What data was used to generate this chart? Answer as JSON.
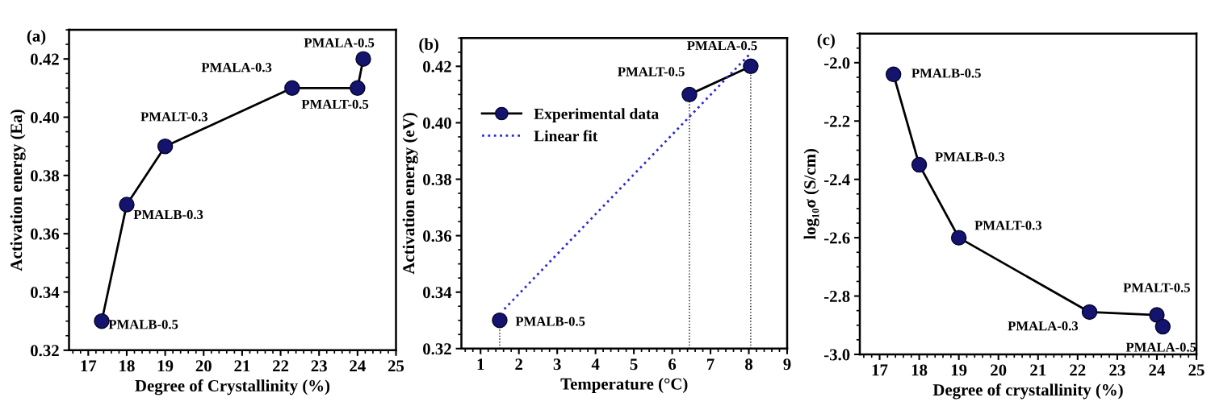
{
  "chart_data": [
    {
      "type": "line",
      "title": "(a)",
      "xlabel": "Degree of Crystallinity (%)",
      "ylabel": "Activation energy (Ea)",
      "xlim": [
        16.5,
        25
      ],
      "xticks": [
        17,
        18,
        19,
        20,
        21,
        22,
        23,
        24,
        25
      ],
      "ylim": [
        0.32,
        0.43
      ],
      "yticks": [
        0.32,
        0.34,
        0.36,
        0.38,
        {
          "value": 0.4,
          "label": "0.40"
        },
        0.42
      ],
      "marker": "circle",
      "grid": false,
      "legend": false,
      "series": [
        {
          "color": "#14146e",
          "x": [
            17.35,
            18,
            19,
            22.3,
            24,
            24.15
          ],
          "values": [
            0.33,
            0.37,
            0.39,
            0.41,
            0.41,
            0.42
          ]
        }
      ],
      "annotations": [
        {
          "text": "PMALB-0.5",
          "x": 17.35,
          "y": 0.33
        },
        {
          "text": "PMALB-0.3",
          "x": 18,
          "y": 0.37
        },
        {
          "text": "PMALT-0.3",
          "x": 19,
          "y": 0.39
        },
        {
          "text": "PMALA-0.3",
          "x": 22.3,
          "y": 0.41
        },
        {
          "text": "PMALT-0.5",
          "x": 24,
          "y": 0.41
        },
        {
          "text": "PMALA-0.5",
          "x": 24.15,
          "y": 0.42
        }
      ]
    },
    {
      "type": "line",
      "title": "(b)",
      "xlabel": "Temperature (°C)",
      "ylabel": "Activation energy (eV)",
      "xlim": [
        0.5,
        9
      ],
      "xticks": [
        1,
        2,
        3,
        4,
        5,
        6,
        7,
        8,
        9
      ],
      "ylim": [
        0.32,
        0.43
      ],
      "yticks": [
        0.32,
        0.34,
        0.36,
        0.38,
        {
          "value": 0.4,
          "label": "0.40"
        },
        0.42
      ],
      "grid": false,
      "legend": "top left",
      "series": [
        {
          "name": "Experimental data",
          "color": "#14146e",
          "marker": "circle",
          "line_style": "solid",
          "x": [
            1.5,
            4,
            6.45,
            8.05
          ],
          "values": [
            0.33,
            null,
            0.41,
            0.42
          ]
        },
        {
          "name": "Linear fit",
          "color": "#2b2bd8",
          "marker": "none",
          "line_style": "dotted",
          "x": [
            1.62,
            8.0
          ],
          "values": [
            0.334,
            0.424
          ]
        }
      ],
      "ref_lines": [
        {
          "axis": "x",
          "value": 1.5,
          "color": "#111111",
          "line_style": "dotted"
        },
        {
          "axis": "x",
          "value": 6.45,
          "color": "#111111",
          "line_style": "dotted"
        },
        {
          "axis": "x",
          "value": 8.05,
          "color": "#111111",
          "line_style": "dotted"
        }
      ],
      "annotations": [
        {
          "text": "PMALB-0.5",
          "x": 1.5,
          "y": 0.33
        },
        {
          "text": "PMALT-0.5",
          "x": 6.45,
          "y": 0.41
        },
        {
          "text": "PMALA-0.5",
          "x": 8.05,
          "y": 0.42
        }
      ]
    },
    {
      "type": "line",
      "title": "(c)",
      "xlabel": "Degree of crystallinity (%)",
      "ylabel": "log₁₀σ (S/cm)",
      "xlim": [
        16.5,
        25
      ],
      "xticks": [
        17,
        18,
        19,
        20,
        21,
        22,
        23,
        24,
        25
      ],
      "ylim": [
        -3.0,
        -1.9
      ],
      "yticks": [
        {
          "value": -3.0,
          "label": "-3.0"
        },
        {
          "value": -2.8,
          "label": "-2.8"
        },
        {
          "value": -2.6,
          "label": "-2.6"
        },
        {
          "value": -2.4,
          "label": "-2.4"
        },
        {
          "value": -2.2,
          "label": "-2.2"
        },
        {
          "value": -2.0,
          "label": "-2.0"
        }
      ],
      "marker": "circle",
      "grid": false,
      "legend": false,
      "series": [
        {
          "color": "#14146e",
          "x": [
            17.35,
            18,
            19,
            22.3,
            24,
            24.15
          ],
          "values": [
            -2.04,
            -2.35,
            -2.6,
            -2.855,
            -2.865,
            -2.905
          ]
        }
      ],
      "annotations": [
        {
          "text": "PMALB-0.5",
          "x": 17.35,
          "y": -2.04
        },
        {
          "text": "PMALB-0.3",
          "x": 18,
          "y": -2.35
        },
        {
          "text": "PMALT-0.3",
          "x": 19,
          "y": -2.6
        },
        {
          "text": "PMALA-0.3",
          "x": 22.3,
          "y": -2.855
        },
        {
          "text": "PMALT-0.5",
          "x": 24,
          "y": -2.865
        },
        {
          "text": "PMALA-0.5",
          "x": 24.15,
          "y": -2.905
        }
      ]
    }
  ]
}
